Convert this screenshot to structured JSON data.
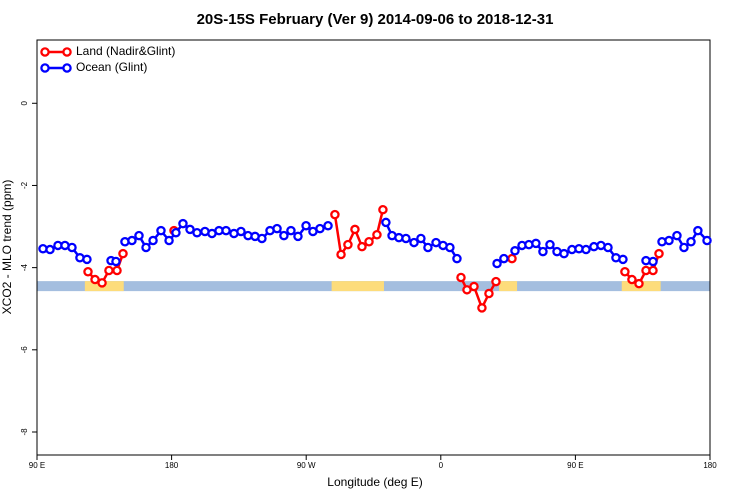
{
  "chart_data": {
    "type": "line",
    "title": "20S-15S February (Ver 9)   2014-09-06 to 2018-12-31",
    "x_label": "Longitude (deg E)",
    "y_label": "XCO2 - MLO trend (ppm)",
    "xlim": [
      90,
      540
    ],
    "xticks": [
      {
        "value": 90,
        "label": "90 E"
      },
      180,
      {
        "value": 270,
        "label": "90 W"
      },
      {
        "value": 360,
        "label": "0"
      },
      {
        "value": 450,
        "label": "90 E"
      },
      {
        "value": 540,
        "label": "180"
      }
    ],
    "ylim": [
      -8.56,
      1.54
    ],
    "yticks": [
      0,
      -2,
      -4,
      -6,
      -8
    ],
    "legend": "top-left",
    "land_mask": {
      "y": -4.45,
      "ocean_color": "#a4bedf",
      "land_color": "#fddc7b",
      "land": [
        [
          122,
          148
        ],
        [
          287,
          322
        ],
        [
          399,
          411
        ],
        [
          481,
          507
        ]
      ]
    },
    "series": [
      {
        "name": "Land (Nadir&Glint)",
        "color": "#ff0000",
        "x": [
          124.1,
          128.8,
          133.5,
          138.1,
          143.5,
          147.5,
          null,
          181.6,
          null,
          289.2,
          293.3,
          297.9,
          302.6,
          307.3,
          312.0,
          317.3,
          321.3,
          null,
          373.5,
          377.5,
          382.2,
          387.5,
          392.2,
          396.9,
          null,
          407.6,
          null,
          483.1,
          487.8,
          492.5,
          497.2,
          501.9,
          505.9
        ],
        "values": [
          -4.1,
          -4.29,
          -4.37,
          -4.07,
          -4.07,
          -3.66,
          null,
          -3.1,
          null,
          -2.71,
          -3.68,
          -3.44,
          -3.07,
          -3.49,
          -3.37,
          -3.2,
          -2.59,
          null,
          -4.24,
          -4.54,
          -4.46,
          -4.98,
          -4.63,
          -4.34,
          null,
          -3.78,
          null,
          -4.1,
          -4.29,
          -4.39,
          -4.07,
          -4.07,
          -3.66
        ]
      },
      {
        "name": "Ocean (Glint)",
        "color": "#0000ff",
        "x": [
          94.0,
          98.7,
          104.0,
          108.7,
          113.4,
          118.7,
          123.4,
          null,
          139.5,
          142.8,
          null,
          148.8,
          153.5,
          158.2,
          162.9,
          167.6,
          172.9,
          178.3,
          182.9,
          187.6,
          192.3,
          197.0,
          202.3,
          207.0,
          211.7,
          216.4,
          221.7,
          226.4,
          231.1,
          235.8,
          240.4,
          245.8,
          250.5,
          255.1,
          259.8,
          264.5,
          269.9,
          274.5,
          279.2,
          284.6,
          null,
          323.3,
          327.4,
          332.0,
          336.7,
          342.1,
          346.7,
          351.4,
          356.8,
          361.5,
          366.1,
          370.8,
          null,
          397.6,
          402.2,
          null,
          409.6,
          414.3,
          418.9,
          423.6,
          428.3,
          433.0,
          437.7,
          442.4,
          447.7,
          452.4,
          457.1,
          462.4,
          467.1,
          471.8,
          477.1,
          481.8,
          null,
          497.2,
          501.9,
          null,
          507.9,
          512.6,
          517.9,
          522.6,
          527.3,
          531.9,
          538.0
        ],
        "values": [
          -3.54,
          -3.56,
          -3.46,
          -3.46,
          -3.51,
          -3.76,
          -3.8,
          null,
          -3.83,
          -3.85,
          null,
          -3.37,
          -3.34,
          -3.22,
          -3.51,
          -3.34,
          -3.1,
          -3.34,
          -3.15,
          -2.93,
          -3.07,
          -3.15,
          -3.12,
          -3.17,
          -3.1,
          -3.1,
          -3.17,
          -3.12,
          -3.22,
          -3.24,
          -3.29,
          -3.1,
          -3.05,
          -3.22,
          -3.1,
          -3.24,
          -2.98,
          -3.12,
          -3.05,
          -2.98,
          null,
          -2.9,
          -3.22,
          -3.27,
          -3.29,
          -3.39,
          -3.29,
          -3.51,
          -3.39,
          -3.46,
          -3.51,
          -3.78,
          null,
          -3.9,
          -3.78,
          null,
          -3.59,
          -3.46,
          -3.44,
          -3.41,
          -3.61,
          -3.44,
          -3.61,
          -3.66,
          -3.56,
          -3.54,
          -3.56,
          -3.49,
          -3.46,
          -3.51,
          -3.76,
          -3.8,
          null,
          -3.83,
          -3.85,
          null,
          -3.37,
          -3.34,
          -3.22,
          -3.51,
          -3.37,
          -3.1,
          -3.34
        ]
      }
    ]
  }
}
